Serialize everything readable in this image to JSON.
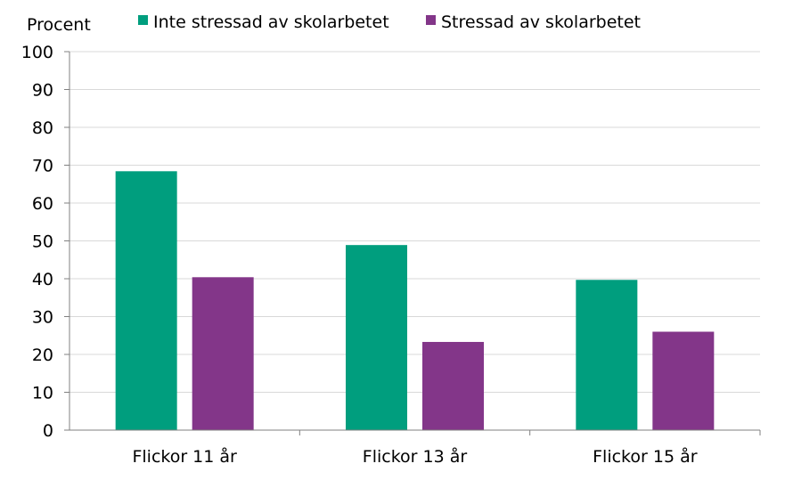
{
  "chart_data": {
    "type": "bar",
    "ylabel": "Procent",
    "categories": [
      "Flickor 11 år",
      "Flickor 13 år",
      "Flickor 15 år"
    ],
    "series": [
      {
        "name": "Inte stressad av skolarbetet",
        "color": "#009E7E",
        "values": [
          68.4,
          48.9,
          39.7
        ]
      },
      {
        "name": "Stressad av skolarbetet",
        "color": "#833689",
        "values": [
          40.4,
          23.3,
          26.0
        ]
      }
    ],
    "ylim": [
      0,
      100
    ],
    "yticks": [
      0,
      10,
      20,
      30,
      40,
      50,
      60,
      70,
      80,
      90,
      100
    ],
    "grid": true,
    "legend": "top"
  }
}
